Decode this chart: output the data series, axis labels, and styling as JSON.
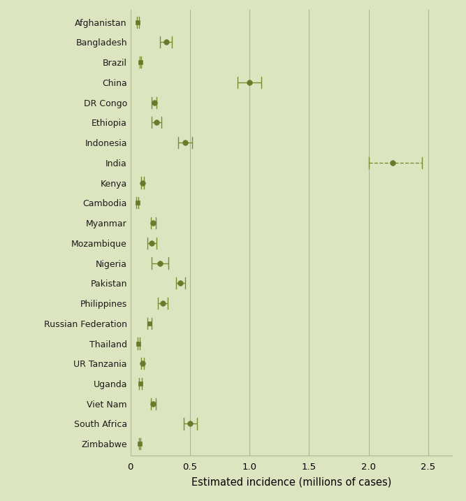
{
  "countries": [
    "Afghanistan",
    "Bangladesh",
    "Brazil",
    "China",
    "DR Congo",
    "Ethiopia",
    "Indonesia",
    "India",
    "Kenya",
    "Cambodia",
    "Myanmar",
    "Mozambique",
    "Nigeria",
    "Pakistan",
    "Philippines",
    "Russian Federation",
    "Thailand",
    "UR Tanzania",
    "Uganda",
    "Viet Nam",
    "South Africa",
    "Zimbabwe"
  ],
  "values": [
    0.062,
    0.3,
    0.085,
    1.0,
    0.2,
    0.22,
    0.46,
    2.2,
    0.1,
    0.058,
    0.19,
    0.18,
    0.25,
    0.42,
    0.27,
    0.16,
    0.068,
    0.1,
    0.082,
    0.19,
    0.5,
    0.078
  ],
  "lo": [
    0.055,
    0.25,
    0.08,
    0.9,
    0.18,
    0.18,
    0.4,
    2.0,
    0.09,
    0.05,
    0.17,
    0.14,
    0.18,
    0.38,
    0.23,
    0.14,
    0.06,
    0.09,
    0.07,
    0.17,
    0.45,
    0.07
  ],
  "hi": [
    0.07,
    0.35,
    0.092,
    1.1,
    0.22,
    0.26,
    0.52,
    2.45,
    0.11,
    0.065,
    0.21,
    0.22,
    0.32,
    0.46,
    0.31,
    0.18,
    0.075,
    0.11,
    0.093,
    0.21,
    0.56,
    0.086
  ],
  "marker_styles": [
    "s",
    "o",
    "s",
    "o",
    "o",
    "o",
    "o",
    "o",
    "o",
    "s",
    "o",
    "o",
    "o",
    "o",
    "o",
    "s",
    "s",
    "o",
    "s",
    "o",
    "o",
    "s"
  ],
  "dashed": [
    false,
    false,
    false,
    false,
    false,
    false,
    false,
    true,
    false,
    false,
    false,
    false,
    false,
    false,
    false,
    false,
    false,
    false,
    false,
    false,
    false,
    false
  ],
  "dot_color": "#6b7a2a",
  "line_color": "#7a8c2e",
  "background_color": "#dde5c0",
  "grid_color": "#aab89a",
  "label_color": "#1a1a1a",
  "xlabel": "Estimated incidence (millions of cases)",
  "xlim": [
    0,
    2.7
  ],
  "xticks": [
    0,
    0.5,
    1.0,
    1.5,
    2.0,
    2.5
  ],
  "xtick_labels": [
    "0",
    "0.5",
    "1.0",
    "1.5",
    "2.0",
    "2.5"
  ]
}
